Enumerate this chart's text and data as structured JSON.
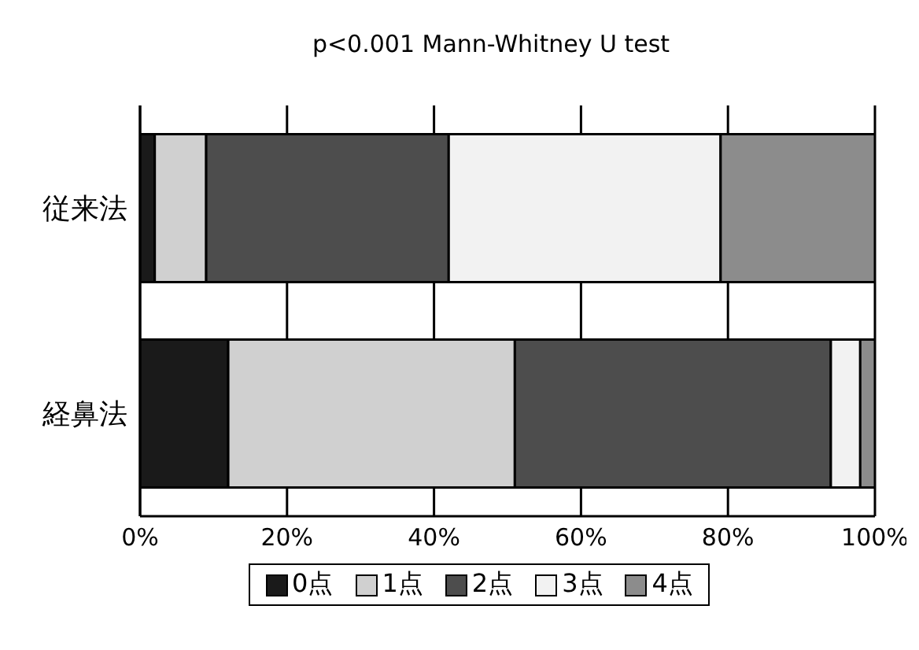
{
  "chart_data": {
    "type": "bar",
    "orientation": "horizontal",
    "stacked": true,
    "title": "p<0.001 Mann-Whitney U test",
    "categories": [
      "従来法",
      "経鼻法"
    ],
    "series": [
      {
        "name": "0点",
        "color": "#1a1a1a",
        "values": [
          2,
          12
        ]
      },
      {
        "name": "1点",
        "color": "#d0d0d0",
        "values": [
          7,
          39
        ]
      },
      {
        "name": "2点",
        "color": "#4d4d4d",
        "values": [
          33,
          43
        ]
      },
      {
        "name": "3点",
        "color": "#f2f2f2",
        "values": [
          37,
          4
        ]
      },
      {
        "name": "4点",
        "color": "#8c8c8c",
        "values": [
          21,
          2
        ]
      }
    ],
    "xlim": [
      0,
      100
    ],
    "xticks": [
      {
        "value": 0,
        "label": "0%"
      },
      {
        "value": 20,
        "label": "20%"
      },
      {
        "value": 40,
        "label": "40%"
      },
      {
        "value": 60,
        "label": "60%"
      },
      {
        "value": 80,
        "label": "80%"
      },
      {
        "value": 100,
        "label": "100%"
      }
    ],
    "grid": "x",
    "legend": "bottom"
  }
}
